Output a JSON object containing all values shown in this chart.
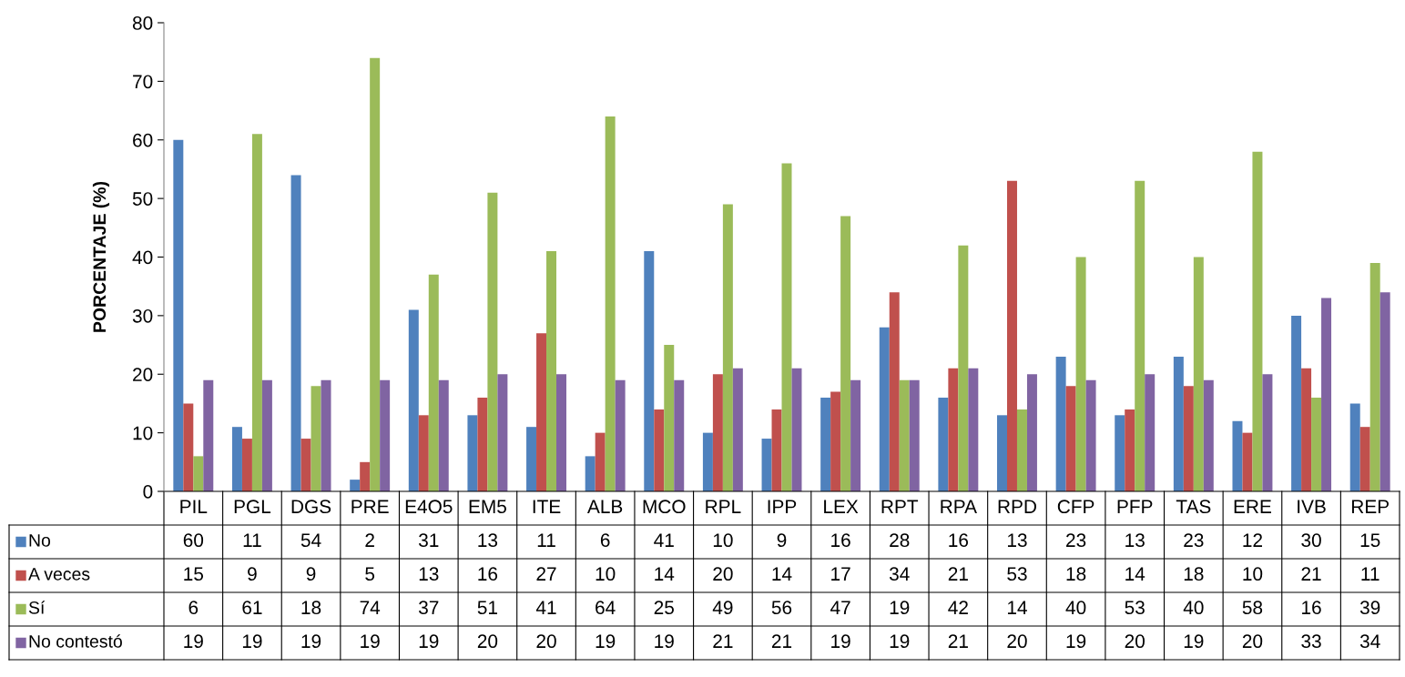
{
  "chart_data": {
    "type": "bar",
    "ylabel": "PORCENTAJE (%)",
    "categories": [
      "PIL",
      "PGL",
      "DGS",
      "PRE",
      "E4O5",
      "EM5",
      "ITE",
      "ALB",
      "MCO",
      "RPL",
      "IPP",
      "LEX",
      "RPT",
      "RPA",
      "RPD",
      "CFP",
      "PFP",
      "TAS",
      "ERE",
      "IVB",
      "REP"
    ],
    "series": [
      {
        "name": "No",
        "color": "#4f81bd",
        "values": [
          60,
          11,
          54,
          2,
          31,
          13,
          11,
          6,
          41,
          10,
          9,
          16,
          28,
          16,
          13,
          23,
          13,
          23,
          12,
          30,
          15
        ]
      },
      {
        "name": "A veces",
        "color": "#c0504d",
        "values": [
          15,
          9,
          9,
          5,
          13,
          16,
          27,
          10,
          14,
          20,
          14,
          17,
          34,
          21,
          53,
          18,
          14,
          18,
          10,
          21,
          11
        ]
      },
      {
        "name": "Sí",
        "color": "#9bbb59",
        "values": [
          6,
          61,
          18,
          74,
          37,
          51,
          41,
          64,
          25,
          49,
          56,
          47,
          19,
          42,
          14,
          40,
          53,
          40,
          58,
          16,
          39
        ]
      },
      {
        "name": "No contestó",
        "color": "#8064a2",
        "values": [
          19,
          19,
          19,
          19,
          19,
          20,
          20,
          19,
          19,
          21,
          21,
          19,
          19,
          21,
          20,
          19,
          20,
          19,
          20,
          33,
          34
        ]
      }
    ],
    "ylim": [
      0,
      80
    ],
    "yticks": [
      0,
      10,
      20,
      30,
      40,
      50,
      60,
      70,
      80
    ],
    "grid": false,
    "legend": "bottom left",
    "data_labels": true
  }
}
